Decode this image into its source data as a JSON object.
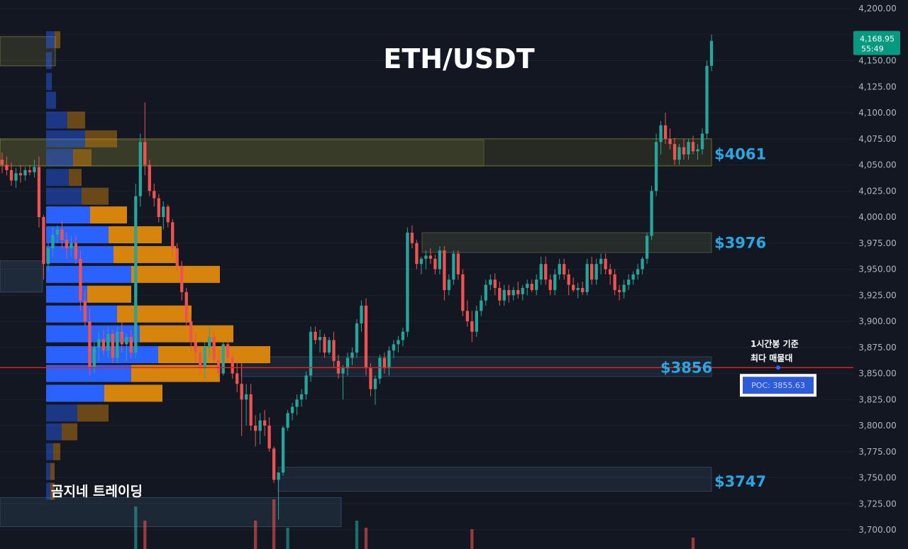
{
  "chart_data": {
    "type": "candlestick",
    "title": "ETH/USDT",
    "watermark": "곰지네 트레이딩",
    "colors": {
      "background": "#131722",
      "up": "#26a69a",
      "down": "#ef5350",
      "level_label": "#29a7e1",
      "poc_line": "#e02020",
      "profile_buy": "#2962ff",
      "profile_sell": "#e08a0c"
    },
    "y_axis": {
      "ticks": [
        "4,200.00",
        "4,175.00",
        "4,150.00",
        "4,125.00",
        "4,100.00",
        "4,075.00",
        "4,050.00",
        "4,025.00",
        "4,000.00",
        "3,975.00",
        "3,950.00",
        "3,925.00",
        "3,900.00",
        "3,875.00",
        "3,850.00",
        "3,825.00",
        "3,800.00",
        "3,775.00",
        "3,750.00",
        "3,725.00",
        "3,700.00"
      ],
      "tick_values": [
        4200,
        4175,
        4150,
        4125,
        4100,
        4075,
        4050,
        4025,
        4000,
        3975,
        3950,
        3925,
        3900,
        3875,
        3850,
        3825,
        3800,
        3775,
        3750,
        3725,
        3700
      ],
      "range": [
        3695,
        4205
      ]
    },
    "last_price": {
      "value": 4168.95,
      "label": "4,168.95",
      "countdown": "55:49"
    },
    "levels": [
      {
        "price": 4061,
        "label": "$4061"
      },
      {
        "price": 3976,
        "label": "$3976"
      },
      {
        "price": 3856,
        "label": "$3856"
      },
      {
        "price": 3747,
        "label": "$3747"
      }
    ],
    "poc": {
      "value": 3855.63,
      "label": "POC: 3855.63",
      "note_line1": "1시간봉 기준",
      "note_line2": "최다 매물대"
    },
    "candles": [
      [
        4055,
        4062,
        4042,
        4050
      ],
      [
        4050,
        4058,
        4040,
        4045
      ],
      [
        4045,
        4052,
        4030,
        4035
      ],
      [
        4035,
        4047,
        4028,
        4042
      ],
      [
        4042,
        4050,
        4033,
        4040
      ],
      [
        4040,
        4048,
        4035,
        4045
      ],
      [
        4045,
        4050,
        4040,
        4043
      ],
      [
        4043,
        4055,
        4038,
        4048
      ],
      [
        4048,
        4058,
        3990,
        4000
      ],
      [
        4000,
        4002,
        3940,
        3955
      ],
      [
        3955,
        3975,
        3948,
        3970
      ],
      [
        3970,
        3990,
        3962,
        3983
      ],
      [
        3983,
        3992,
        3975,
        3988
      ],
      [
        3988,
        3996,
        3970,
        3978
      ],
      [
        3978,
        3985,
        3960,
        3970
      ],
      [
        3970,
        3982,
        3962,
        3975
      ],
      [
        3975,
        3982,
        3955,
        3960
      ],
      [
        3960,
        3968,
        3910,
        3920
      ],
      [
        3920,
        3930,
        3895,
        3900
      ],
      [
        3900,
        3912,
        3848,
        3855
      ],
      [
        3855,
        3880,
        3850,
        3875
      ],
      [
        3875,
        3890,
        3862,
        3883
      ],
      [
        3883,
        3892,
        3868,
        3872
      ],
      [
        3872,
        3895,
        3865,
        3888
      ],
      [
        3888,
        3892,
        3860,
        3865
      ],
      [
        3865,
        3895,
        3860,
        3890
      ],
      [
        3890,
        3900,
        3870,
        3878
      ],
      [
        3878,
        3888,
        3862,
        3885
      ],
      [
        3885,
        3892,
        3865,
        3870
      ],
      [
        3870,
        4032,
        3865,
        4020
      ],
      [
        4020,
        4080,
        4010,
        4072
      ],
      [
        4072,
        4110,
        4040,
        4050
      ],
      [
        4050,
        4055,
        4020,
        4025
      ],
      [
        4025,
        4032,
        4010,
        4018
      ],
      [
        4018,
        4022,
        3995,
        4000
      ],
      [
        4000,
        4015,
        3988,
        4010
      ],
      [
        4010,
        4012,
        3990,
        3995
      ],
      [
        3995,
        3998,
        3960,
        3970
      ],
      [
        3970,
        3975,
        3948,
        3953
      ],
      [
        3953,
        3958,
        3920,
        3928
      ],
      [
        3928,
        3932,
        3895,
        3900
      ],
      [
        3900,
        3905,
        3870,
        3880
      ],
      [
        3880,
        3888,
        3860,
        3870
      ],
      [
        3870,
        3875,
        3848,
        3855
      ],
      [
        3855,
        3880,
        3845,
        3875
      ],
      [
        3875,
        3895,
        3865,
        3885
      ],
      [
        3885,
        3890,
        3860,
        3863
      ],
      [
        3863,
        3872,
        3845,
        3850
      ],
      [
        3850,
        3880,
        3848,
        3878
      ],
      [
        3878,
        3884,
        3860,
        3865
      ],
      [
        3865,
        3870,
        3845,
        3850
      ],
      [
        3850,
        3862,
        3832,
        3840
      ],
      [
        3840,
        3860,
        3790,
        3825
      ],
      [
        3825,
        3840,
        3800,
        3830
      ],
      [
        3830,
        3840,
        3795,
        3800
      ],
      [
        3800,
        3810,
        3780,
        3795
      ],
      [
        3795,
        3812,
        3782,
        3805
      ],
      [
        3805,
        3815,
        3790,
        3800
      ],
      [
        3800,
        3808,
        3775,
        3778
      ],
      [
        3778,
        3780,
        3745,
        3748
      ],
      [
        3748,
        3755,
        3710,
        3755
      ],
      [
        3755,
        3800,
        3752,
        3798
      ],
      [
        3798,
        3815,
        3795,
        3812
      ],
      [
        3812,
        3822,
        3805,
        3818
      ],
      [
        3818,
        3830,
        3810,
        3825
      ],
      [
        3825,
        3835,
        3818,
        3830
      ],
      [
        3830,
        3852,
        3825,
        3848
      ],
      [
        3848,
        3895,
        3842,
        3890
      ],
      [
        3890,
        3895,
        3878,
        3882
      ],
      [
        3882,
        3892,
        3870,
        3885
      ],
      [
        3885,
        3888,
        3865,
        3870
      ],
      [
        3870,
        3885,
        3868,
        3882
      ],
      [
        3882,
        3890,
        3855,
        3862
      ],
      [
        3862,
        3868,
        3845,
        3850
      ],
      [
        3850,
        3858,
        3825,
        3855
      ],
      [
        3855,
        3870,
        3848,
        3865
      ],
      [
        3865,
        3875,
        3858,
        3870
      ],
      [
        3870,
        3902,
        3865,
        3898
      ],
      [
        3898,
        3920,
        3890,
        3915
      ],
      [
        3915,
        3922,
        3848,
        3855
      ],
      [
        3855,
        3860,
        3828,
        3835
      ],
      [
        3835,
        3848,
        3820,
        3845
      ],
      [
        3845,
        3868,
        3840,
        3865
      ],
      [
        3865,
        3870,
        3850,
        3855
      ],
      [
        3855,
        3876,
        3848,
        3872
      ],
      [
        3872,
        3882,
        3865,
        3878
      ],
      [
        3878,
        3886,
        3870,
        3882
      ],
      [
        3882,
        3894,
        3876,
        3890
      ],
      [
        3890,
        3990,
        3885,
        3985
      ],
      [
        3985,
        3992,
        3970,
        3975
      ],
      [
        3975,
        3978,
        3950,
        3955
      ],
      [
        3955,
        3962,
        3945,
        3960
      ],
      [
        3960,
        3968,
        3950,
        3963
      ],
      [
        3963,
        3970,
        3955,
        3960
      ],
      [
        3960,
        3964,
        3945,
        3950
      ],
      [
        3950,
        3972,
        3945,
        3968
      ],
      [
        3968,
        3972,
        3920,
        3930
      ],
      [
        3930,
        3945,
        3925,
        3940
      ],
      [
        3940,
        3968,
        3935,
        3965
      ],
      [
        3965,
        3968,
        3940,
        3945
      ],
      [
        3945,
        3950,
        3905,
        3910
      ],
      [
        3910,
        3920,
        3895,
        3900
      ],
      [
        3900,
        3910,
        3880,
        3890
      ],
      [
        3890,
        3915,
        3885,
        3910
      ],
      [
        3910,
        3925,
        3905,
        3920
      ],
      [
        3920,
        3940,
        3915,
        3935
      ],
      [
        3935,
        3945,
        3930,
        3940
      ],
      [
        3940,
        3946,
        3925,
        3932
      ],
      [
        3932,
        3938,
        3915,
        3920
      ],
      [
        3920,
        3935,
        3915,
        3930
      ],
      [
        3930,
        3935,
        3918,
        3925
      ],
      [
        3925,
        3933,
        3920,
        3930
      ],
      [
        3930,
        3938,
        3922,
        3926
      ],
      [
        3926,
        3935,
        3920,
        3932
      ],
      [
        3932,
        3940,
        3925,
        3936
      ],
      [
        3936,
        3940,
        3928,
        3930
      ],
      [
        3930,
        3945,
        3925,
        3940
      ],
      [
        3940,
        3962,
        3935,
        3955
      ],
      [
        3955,
        3962,
        3935,
        3940
      ],
      [
        3940,
        3945,
        3925,
        3930
      ],
      [
        3930,
        3950,
        3925,
        3945
      ],
      [
        3945,
        3960,
        3940,
        3955
      ],
      [
        3955,
        3960,
        3940,
        3945
      ],
      [
        3945,
        3950,
        3925,
        3935
      ],
      [
        3935,
        3942,
        3928,
        3930
      ],
      [
        3930,
        3937,
        3922,
        3932
      ],
      [
        3932,
        3938,
        3925,
        3928
      ],
      [
        3928,
        3960,
        3925,
        3955
      ],
      [
        3955,
        3962,
        3935,
        3940
      ],
      [
        3940,
        3960,
        3935,
        3955
      ],
      [
        3955,
        3965,
        3945,
        3960
      ],
      [
        3960,
        3965,
        3945,
        3950
      ],
      [
        3950,
        3955,
        3935,
        3945
      ],
      [
        3945,
        3950,
        3925,
        3930
      ],
      [
        3930,
        3935,
        3920,
        3928
      ],
      [
        3928,
        3940,
        3922,
        3935
      ],
      [
        3935,
        3945,
        3930,
        3940
      ],
      [
        3940,
        3948,
        3935,
        3945
      ],
      [
        3945,
        3955,
        3940,
        3950
      ],
      [
        3950,
        3962,
        3945,
        3960
      ],
      [
        3960,
        3985,
        3955,
        3982
      ],
      [
        3982,
        4030,
        3978,
        4025
      ],
      [
        4025,
        4080,
        4020,
        4072
      ],
      [
        4072,
        4092,
        4060,
        4088
      ],
      [
        4088,
        4100,
        4070,
        4075
      ],
      [
        4075,
        4085,
        4065,
        4070
      ],
      [
        4070,
        4076,
        4050,
        4055
      ],
      [
        4055,
        4070,
        4050,
        4067
      ],
      [
        4067,
        4075,
        4055,
        4060
      ],
      [
        4060,
        4075,
        4055,
        4072
      ],
      [
        4072,
        4078,
        4060,
        4063
      ],
      [
        4063,
        4070,
        4055,
        4065
      ],
      [
        4065,
        4085,
        4060,
        4080
      ],
      [
        4080,
        4150,
        4075,
        4145
      ],
      [
        4145,
        4175,
        4140,
        4168.95
      ]
    ]
  }
}
